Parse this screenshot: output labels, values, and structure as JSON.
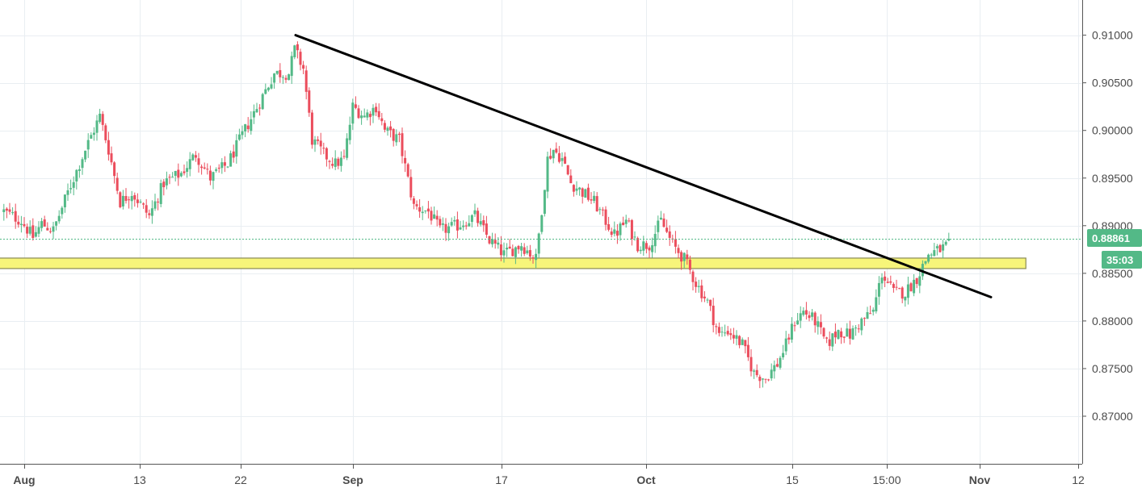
{
  "chart_data": {
    "type": "candlestick",
    "instrument_price": {
      "last": "0.88861",
      "countdown": "35:03"
    },
    "y_axis": {
      "ylim": [
        0.8655,
        0.9135
      ],
      "ticks": [
        {
          "value": 0.91,
          "label": "0.91000"
        },
        {
          "value": 0.905,
          "label": "0.90500"
        },
        {
          "value": 0.9,
          "label": "0.90000"
        },
        {
          "value": 0.895,
          "label": "0.89500"
        },
        {
          "value": 0.89,
          "label": "0.89000"
        },
        {
          "value": 0.885,
          "label": "0.88500"
        },
        {
          "value": 0.88,
          "label": "0.88000"
        },
        {
          "value": 0.875,
          "label": "0.87500"
        },
        {
          "value": 0.87,
          "label": "0.87000"
        }
      ]
    },
    "x_axis": {
      "ticks": [
        {
          "label": "Aug",
          "bold": true
        },
        {
          "label": "13",
          "bold": false
        },
        {
          "label": "22",
          "bold": false
        },
        {
          "label": "Sep",
          "bold": true
        },
        {
          "label": "17",
          "bold": false
        },
        {
          "label": "Oct",
          "bold": true
        },
        {
          "label": "15",
          "bold": false
        },
        {
          "label": "15:00",
          "bold": false
        },
        {
          "label": "Nov",
          "bold": true
        },
        {
          "label": "12",
          "bold": false
        }
      ]
    },
    "close_path": [
      [
        0,
        0.8915
      ],
      [
        6,
        0.8905
      ],
      [
        10,
        0.8888
      ],
      [
        13,
        0.8902
      ],
      [
        17,
        0.8895
      ],
      [
        22,
        0.8935
      ],
      [
        28,
        0.898
      ],
      [
        33,
        0.9015
      ],
      [
        36,
        0.898
      ],
      [
        40,
        0.8925
      ],
      [
        44,
        0.8935
      ],
      [
        50,
        0.891
      ],
      [
        55,
        0.8945
      ],
      [
        61,
        0.8955
      ],
      [
        66,
        0.8975
      ],
      [
        71,
        0.895
      ],
      [
        77,
        0.8965
      ],
      [
        82,
        0.8995
      ],
      [
        88,
        0.903
      ],
      [
        93,
        0.906
      ],
      [
        98,
        0.906
      ],
      [
        100,
        0.9085
      ],
      [
        103,
        0.9065
      ],
      [
        106,
        0.899
      ],
      [
        110,
        0.8975
      ],
      [
        114,
        0.8965
      ],
      [
        117,
        0.897
      ],
      [
        120,
        0.9025
      ],
      [
        124,
        0.9015
      ],
      [
        128,
        0.9025
      ],
      [
        131,
        0.9
      ],
      [
        136,
        0.899
      ],
      [
        141,
        0.892
      ],
      [
        146,
        0.8915
      ],
      [
        150,
        0.8895
      ],
      [
        156,
        0.89
      ],
      [
        162,
        0.891
      ],
      [
        167,
        0.8885
      ],
      [
        172,
        0.887
      ],
      [
        178,
        0.888
      ],
      [
        183,
        0.8865
      ],
      [
        187,
        0.897
      ],
      [
        189,
        0.898
      ],
      [
        192,
        0.897
      ],
      [
        195,
        0.8945
      ],
      [
        199,
        0.8935
      ],
      [
        203,
        0.8925
      ],
      [
        207,
        0.8905
      ],
      [
        210,
        0.889
      ],
      [
        214,
        0.8905
      ],
      [
        218,
        0.888
      ],
      [
        222,
        0.888
      ],
      [
        226,
        0.8905
      ],
      [
        230,
        0.888
      ],
      [
        234,
        0.8865
      ],
      [
        238,
        0.884
      ],
      [
        242,
        0.882
      ],
      [
        246,
        0.8785
      ],
      [
        249,
        0.879
      ],
      [
        254,
        0.8775
      ],
      [
        258,
        0.8745
      ],
      [
        262,
        0.874
      ],
      [
        266,
        0.8755
      ],
      [
        269,
        0.8775
      ],
      [
        272,
        0.88
      ],
      [
        275,
        0.881
      ],
      [
        279,
        0.88
      ],
      [
        283,
        0.8775
      ],
      [
        287,
        0.879
      ],
      [
        291,
        0.8785
      ],
      [
        295,
        0.88
      ],
      [
        299,
        0.881
      ],
      [
        302,
        0.885
      ],
      [
        306,
        0.883
      ],
      [
        310,
        0.883
      ],
      [
        314,
        0.8845
      ],
      [
        318,
        0.887
      ],
      [
        322,
        0.8875
      ],
      [
        325,
        0.888
      ]
    ],
    "trendline": {
      "from": [
        100,
        0.91
      ],
      "to": [
        340,
        0.8825
      ],
      "color": "#000000"
    },
    "support_zone": {
      "low": 0.8855,
      "high": 0.8866,
      "from": -3,
      "to": 352,
      "color": "#f7f57a"
    },
    "colors": {
      "up": "#53b987",
      "down": "#eb4d5c",
      "price_badge": "#53b987",
      "grid": "#e9eef2"
    }
  }
}
